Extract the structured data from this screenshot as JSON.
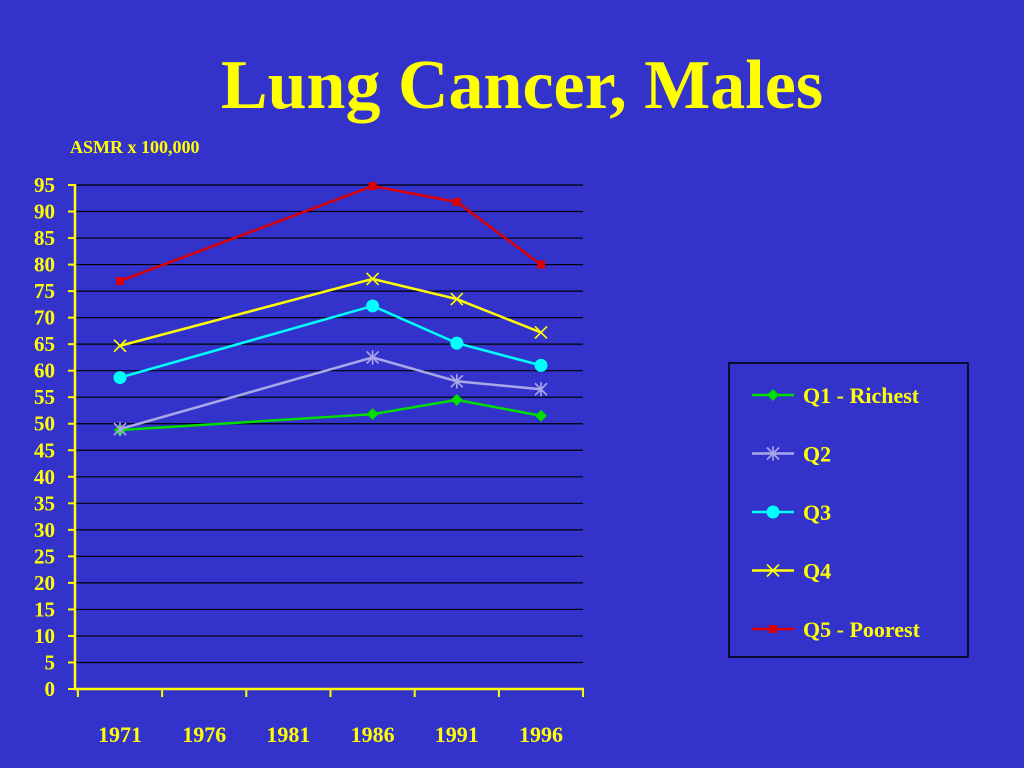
{
  "slide": {
    "title": "Lung Cancer, Males"
  },
  "chart_data": {
    "type": "line",
    "title": "Lung Cancer, Males",
    "ylabel": "ASMR x 100,000",
    "xlabel": "",
    "ylim": [
      0,
      95
    ],
    "ytick_step": 5,
    "x_ticks": [
      1971,
      1976,
      1981,
      1986,
      1991,
      1996
    ],
    "grid": true,
    "legend_position": "right",
    "series": [
      {
        "name": "Q1 - Richest",
        "color": "#00dd00",
        "marker": "diamond",
        "x": [
          1971,
          1986,
          1991,
          1996
        ],
        "values": [
          48.8,
          51.8,
          54.5,
          51.5
        ]
      },
      {
        "name": "Q2",
        "color": "#a8a8e8",
        "marker": "asterisk",
        "x": [
          1971,
          1986,
          1991,
          1996
        ],
        "values": [
          49.0,
          62.5,
          58.0,
          56.5
        ]
      },
      {
        "name": "Q3",
        "color": "#00ffff",
        "marker": "circle",
        "x": [
          1971,
          1986,
          1991,
          1996
        ],
        "values": [
          58.7,
          72.2,
          65.2,
          61.0
        ]
      },
      {
        "name": "Q4",
        "color": "#ffff00",
        "marker": "x",
        "x": [
          1971,
          1986,
          1991,
          1996
        ],
        "values": [
          64.7,
          77.3,
          73.5,
          67.2
        ]
      },
      {
        "name": "Q5 - Poorest",
        "color": "#dd0000",
        "marker": "square",
        "x": [
          1971,
          1986,
          1991,
          1996
        ],
        "values": [
          76.9,
          94.8,
          91.8,
          80.0
        ]
      }
    ]
  }
}
